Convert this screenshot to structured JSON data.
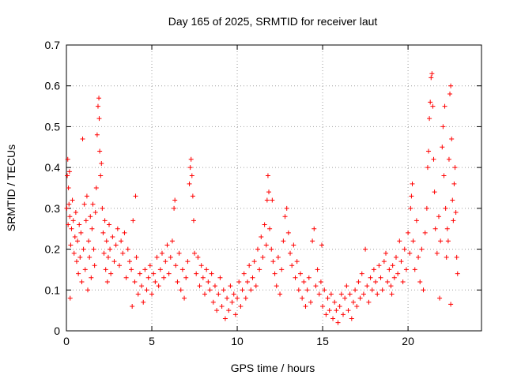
{
  "chart_data": {
    "type": "scatter",
    "title": "Day 165 of 2025, SRMTID for receiver laut",
    "xlabel": "GPS time / hours",
    "ylabel": "SRMTID / TECUs",
    "xlim": [
      0,
      24.3
    ],
    "ylim": [
      0,
      0.7
    ],
    "xticks": [
      0,
      5,
      10,
      15,
      20
    ],
    "xtick_labels": [
      "0",
      "5",
      "10",
      "15",
      "20"
    ],
    "yticks": [
      0,
      0.1,
      0.2,
      0.3,
      0.4,
      0.5,
      0.6,
      0.7
    ],
    "ytick_labels": [
      "0",
      "0.1",
      "0.2",
      "0.3",
      "0.4",
      "0.5",
      "0.6",
      "0.7"
    ],
    "grid": true,
    "marker": "+",
    "series": [
      {
        "name": "SRMTID",
        "color": "#ff0000",
        "points": [
          [
            0.02,
            0.3
          ],
          [
            0.05,
            0.38
          ],
          [
            0.08,
            0.42
          ],
          [
            0.1,
            0.26
          ],
          [
            0.12,
            0.35
          ],
          [
            0.15,
            0.31
          ],
          [
            0.18,
            0.39
          ],
          [
            0.2,
            0.28
          ],
          [
            0.22,
            0.08
          ],
          [
            0.25,
            0.21
          ],
          [
            0.3,
            0.25
          ],
          [
            0.35,
            0.32
          ],
          [
            0.4,
            0.27
          ],
          [
            0.45,
            0.19
          ],
          [
            0.5,
            0.23
          ],
          [
            0.55,
            0.29
          ],
          [
            0.6,
            0.17
          ],
          [
            0.65,
            0.22
          ],
          [
            0.7,
            0.14
          ],
          [
            0.75,
            0.26
          ],
          [
            0.8,
            0.18
          ],
          [
            0.85,
            0.24
          ],
          [
            0.9,
            0.12
          ],
          [
            0.95,
            0.47
          ],
          [
            1.0,
            0.2
          ],
          [
            1.05,
            0.31
          ],
          [
            1.1,
            0.15
          ],
          [
            1.15,
            0.27
          ],
          [
            1.2,
            0.33
          ],
          [
            1.25,
            0.1
          ],
          [
            1.3,
            0.22
          ],
          [
            1.35,
            0.18
          ],
          [
            1.4,
            0.28
          ],
          [
            1.45,
            0.13
          ],
          [
            1.5,
            0.25
          ],
          [
            1.55,
            0.31
          ],
          [
            1.6,
            0.2
          ],
          [
            1.65,
            0.16
          ],
          [
            1.7,
            0.29
          ],
          [
            1.75,
            0.35
          ],
          [
            1.8,
            0.48
          ],
          [
            1.85,
            0.55
          ],
          [
            1.9,
            0.57
          ],
          [
            1.92,
            0.52
          ],
          [
            1.95,
            0.44
          ],
          [
            2.0,
            0.38
          ],
          [
            2.05,
            0.41
          ],
          [
            2.1,
            0.3
          ],
          [
            2.15,
            0.24
          ],
          [
            2.2,
            0.19
          ],
          [
            2.25,
            0.27
          ],
          [
            2.3,
            0.15
          ],
          [
            2.35,
            0.22
          ],
          [
            2.4,
            0.12
          ],
          [
            2.45,
            0.18
          ],
          [
            2.5,
            0.26
          ],
          [
            2.55,
            0.2
          ],
          [
            2.6,
            0.14
          ],
          [
            2.7,
            0.23
          ],
          [
            2.8,
            0.17
          ],
          [
            2.9,
            0.21
          ],
          [
            3.0,
            0.25
          ],
          [
            3.1,
            0.16
          ],
          [
            3.2,
            0.22
          ],
          [
            3.3,
            0.19
          ],
          [
            3.4,
            0.24
          ],
          [
            3.5,
            0.13
          ],
          [
            3.6,
            0.2
          ],
          [
            3.7,
            0.17
          ],
          [
            3.8,
            0.15
          ],
          [
            3.9,
            0.27
          ],
          [
            4.0,
            0.12
          ],
          [
            4.05,
            0.33
          ],
          [
            4.1,
            0.18
          ],
          [
            4.2,
            0.09
          ],
          [
            4.3,
            0.14
          ],
          [
            4.4,
            0.11
          ],
          [
            4.5,
            0.07
          ],
          [
            4.6,
            0.15
          ],
          [
            4.7,
            0.1
          ],
          [
            4.8,
            0.13
          ],
          [
            4.9,
            0.16
          ],
          [
            5.0,
            0.09
          ],
          [
            5.1,
            0.14
          ],
          [
            5.2,
            0.12
          ],
          [
            5.3,
            0.18
          ],
          [
            5.4,
            0.11
          ],
          [
            5.5,
            0.15
          ],
          [
            5.6,
            0.19
          ],
          [
            5.7,
            0.13
          ],
          [
            5.8,
            0.17
          ],
          [
            5.9,
            0.21
          ],
          [
            6.0,
            0.14
          ],
          [
            6.1,
            0.18
          ],
          [
            6.2,
            0.22
          ],
          [
            6.3,
            0.3
          ],
          [
            6.35,
            0.32
          ],
          [
            6.4,
            0.16
          ],
          [
            6.5,
            0.12
          ],
          [
            6.6,
            0.19
          ],
          [
            6.7,
            0.1
          ],
          [
            6.8,
            0.15
          ],
          [
            6.9,
            0.08
          ],
          [
            7.0,
            0.13
          ],
          [
            7.1,
            0.17
          ],
          [
            7.2,
            0.36
          ],
          [
            7.25,
            0.4
          ],
          [
            7.3,
            0.42
          ],
          [
            7.35,
            0.38
          ],
          [
            7.4,
            0.33
          ],
          [
            7.45,
            0.27
          ],
          [
            7.5,
            0.19
          ],
          [
            7.6,
            0.14
          ],
          [
            7.7,
            0.18
          ],
          [
            7.8,
            0.11
          ],
          [
            7.9,
            0.16
          ],
          [
            8.0,
            0.13
          ],
          [
            8.1,
            0.09
          ],
          [
            8.2,
            0.15
          ],
          [
            8.3,
            0.12
          ],
          [
            8.4,
            0.1
          ],
          [
            8.5,
            0.14
          ],
          [
            8.6,
            0.07
          ],
          [
            8.7,
            0.11
          ],
          [
            8.8,
            0.05
          ],
          [
            8.9,
            0.09
          ],
          [
            9.0,
            0.13
          ],
          [
            9.1,
            0.06
          ],
          [
            9.2,
            0.1
          ],
          [
            9.3,
            0.03
          ],
          [
            9.4,
            0.08
          ],
          [
            9.5,
            0.05
          ],
          [
            9.6,
            0.11
          ],
          [
            9.7,
            0.07
          ],
          [
            9.8,
            0.09
          ],
          [
            9.9,
            0.04
          ],
          [
            10.0,
            0.08
          ],
          [
            10.1,
            0.12
          ],
          [
            10.2,
            0.06
          ],
          [
            10.3,
            0.1
          ],
          [
            10.4,
            0.14
          ],
          [
            10.5,
            0.08
          ],
          [
            10.6,
            0.12
          ],
          [
            10.7,
            0.16
          ],
          [
            10.8,
            0.1
          ],
          [
            10.9,
            0.13
          ],
          [
            11.0,
            0.17
          ],
          [
            11.1,
            0.11
          ],
          [
            11.2,
            0.2
          ],
          [
            11.3,
            0.15
          ],
          [
            11.4,
            0.23
          ],
          [
            11.5,
            0.18
          ],
          [
            11.6,
            0.26
          ],
          [
            11.7,
            0.21
          ],
          [
            11.75,
            0.32
          ],
          [
            11.8,
            0.38
          ],
          [
            11.85,
            0.34
          ],
          [
            11.9,
            0.25
          ],
          [
            12.0,
            0.2
          ],
          [
            12.1,
            0.17
          ],
          [
            12.2,
            0.14
          ],
          [
            12.3,
            0.11
          ],
          [
            12.4,
            0.18
          ],
          [
            12.5,
            0.09
          ],
          [
            12.6,
            0.15
          ],
          [
            12.7,
            0.22
          ],
          [
            12.8,
            0.28
          ],
          [
            12.9,
            0.3
          ],
          [
            13.0,
            0.24
          ],
          [
            13.1,
            0.19
          ],
          [
            13.2,
            0.16
          ],
          [
            13.3,
            0.21
          ],
          [
            13.4,
            0.13
          ],
          [
            13.5,
            0.17
          ],
          [
            13.6,
            0.1
          ],
          [
            13.7,
            0.14
          ],
          [
            13.8,
            0.08
          ],
          [
            13.9,
            0.12
          ],
          [
            14.0,
            0.06
          ],
          [
            14.1,
            0.1
          ],
          [
            14.2,
            0.13
          ],
          [
            14.3,
            0.07
          ],
          [
            14.4,
            0.22
          ],
          [
            14.5,
            0.25
          ],
          [
            14.6,
            0.11
          ],
          [
            14.7,
            0.15
          ],
          [
            14.8,
            0.09
          ],
          [
            14.9,
            0.12
          ],
          [
            15.0,
            0.06
          ],
          [
            15.1,
            0.1
          ],
          [
            15.2,
            0.04
          ],
          [
            15.3,
            0.08
          ],
          [
            15.4,
            0.05
          ],
          [
            15.5,
            0.09
          ],
          [
            15.6,
            0.03
          ],
          [
            15.7,
            0.07
          ],
          [
            15.8,
            0.05
          ],
          [
            15.9,
            0.02
          ],
          [
            16.0,
            0.06
          ],
          [
            16.1,
            0.09
          ],
          [
            16.2,
            0.04
          ],
          [
            16.3,
            0.08
          ],
          [
            16.4,
            0.11
          ],
          [
            16.5,
            0.05
          ],
          [
            16.6,
            0.09
          ],
          [
            16.7,
            0.03
          ],
          [
            16.8,
            0.07
          ],
          [
            16.9,
            0.1
          ],
          [
            17.0,
            0.06
          ],
          [
            17.1,
            0.12
          ],
          [
            17.2,
            0.08
          ],
          [
            17.3,
            0.14
          ],
          [
            17.4,
            0.09
          ],
          [
            17.5,
            0.2
          ],
          [
            17.6,
            0.11
          ],
          [
            17.7,
            0.07
          ],
          [
            17.8,
            0.13
          ],
          [
            17.9,
            0.1
          ],
          [
            18.0,
            0.15
          ],
          [
            18.1,
            0.12
          ],
          [
            18.2,
            0.09
          ],
          [
            18.3,
            0.16
          ],
          [
            18.4,
            0.13
          ],
          [
            18.5,
            0.1
          ],
          [
            18.6,
            0.17
          ],
          [
            18.7,
            0.19
          ],
          [
            18.8,
            0.12
          ],
          [
            18.9,
            0.15
          ],
          [
            19.0,
            0.11
          ],
          [
            19.1,
            0.16
          ],
          [
            19.2,
            0.13
          ],
          [
            19.3,
            0.18
          ],
          [
            19.4,
            0.14
          ],
          [
            19.5,
            0.22
          ],
          [
            19.6,
            0.17
          ],
          [
            19.7,
            0.12
          ],
          [
            19.8,
            0.2
          ],
          [
            19.9,
            0.15
          ],
          [
            20.0,
            0.24
          ],
          [
            20.1,
            0.19
          ],
          [
            20.2,
            0.33
          ],
          [
            20.25,
            0.36
          ],
          [
            20.3,
            0.22
          ],
          [
            20.4,
            0.15
          ],
          [
            20.5,
            0.27
          ],
          [
            20.6,
            0.18
          ],
          [
            20.7,
            0.12
          ],
          [
            20.8,
            0.2
          ],
          [
            20.9,
            0.1
          ],
          [
            21.0,
            0.24
          ],
          [
            21.1,
            0.3
          ],
          [
            21.15,
            0.4
          ],
          [
            21.2,
            0.44
          ],
          [
            21.25,
            0.52
          ],
          [
            21.3,
            0.56
          ],
          [
            21.35,
            0.62
          ],
          [
            21.4,
            0.63
          ],
          [
            21.45,
            0.55
          ],
          [
            21.5,
            0.42
          ],
          [
            21.55,
            0.34
          ],
          [
            21.6,
            0.25
          ],
          [
            21.7,
            0.19
          ],
          [
            21.8,
            0.28
          ],
          [
            21.9,
            0.22
          ],
          [
            22.0,
            0.45
          ],
          [
            22.05,
            0.5
          ],
          [
            22.1,
            0.38
          ],
          [
            22.15,
            0.55
          ],
          [
            22.2,
            0.3
          ],
          [
            22.25,
            0.18
          ],
          [
            22.3,
            0.25
          ],
          [
            22.35,
            0.22
          ],
          [
            22.4,
            0.42
          ],
          [
            22.45,
            0.58
          ],
          [
            22.5,
            0.6
          ],
          [
            22.55,
            0.47
          ],
          [
            22.6,
            0.32
          ],
          [
            22.65,
            0.27
          ],
          [
            22.7,
            0.36
          ],
          [
            22.75,
            0.4
          ],
          [
            22.8,
            0.29
          ],
          [
            22.85,
            0.18
          ],
          [
            22.9,
            0.14
          ],
          [
            22.5,
            0.065
          ],
          [
            21.85,
            0.08
          ],
          [
            20.15,
            0.3
          ],
          [
            19.05,
            0.09
          ],
          [
            14.95,
            0.21
          ],
          [
            12.05,
            0.32
          ],
          [
            3.85,
            0.06
          ]
        ]
      }
    ]
  }
}
